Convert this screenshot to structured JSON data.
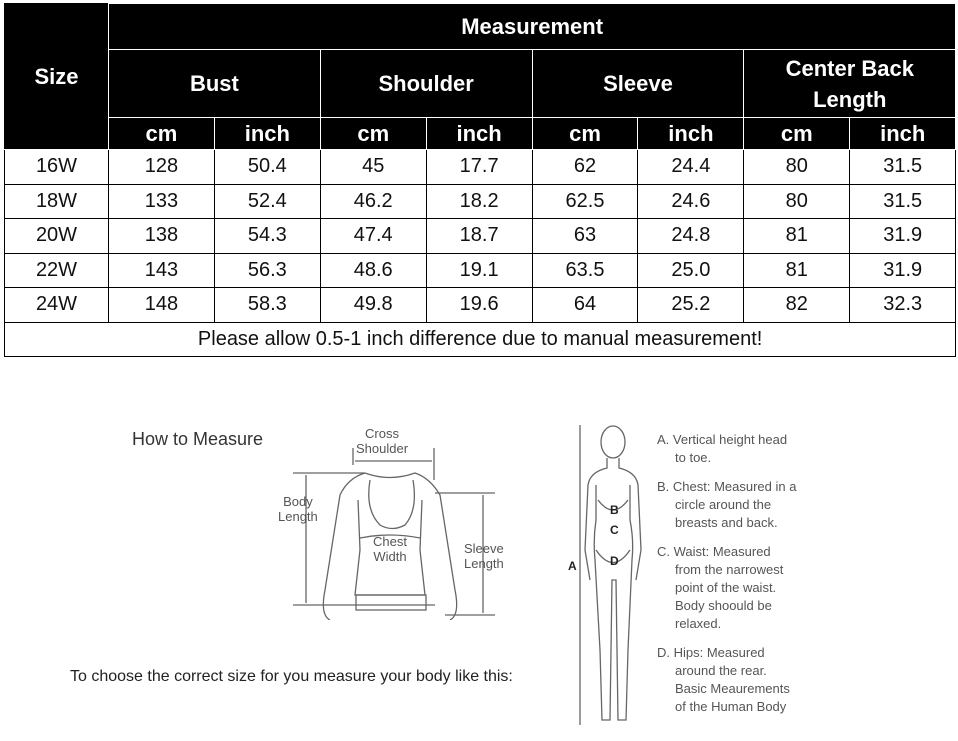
{
  "table": {
    "size_header": "Size",
    "group_header": "Measurement",
    "columns": [
      "Bust",
      "Shoulder",
      "Sleeve",
      "Center Back Length"
    ],
    "units": [
      "cm",
      "inch",
      "cm",
      "inch",
      "cm",
      "inch",
      "cm",
      "inch"
    ],
    "rows": [
      [
        "16W",
        "128",
        "50.4",
        "45",
        "17.7",
        "62",
        "24.4",
        "80",
        "31.5"
      ],
      [
        "18W",
        "133",
        "52.4",
        "46.2",
        "18.2",
        "62.5",
        "24.6",
        "80",
        "31.5"
      ],
      [
        "20W",
        "138",
        "54.3",
        "47.4",
        "18.7",
        "63",
        "24.8",
        "81",
        "31.9"
      ],
      [
        "22W",
        "143",
        "56.3",
        "48.6",
        "19.1",
        "63.5",
        "25.0",
        "81",
        "31.9"
      ],
      [
        "24W",
        "148",
        "58.3",
        "49.8",
        "19.6",
        "64",
        "25.2",
        "82",
        "32.3"
      ]
    ],
    "note": "Please allow 0.5-1 inch difference due to manual measurement!"
  },
  "guide": {
    "title": "How to Measure",
    "cross_shoulder": [
      "Cross",
      "Shoulder"
    ],
    "body_length": [
      "Body",
      "Length"
    ],
    "chest_width": [
      "Chest",
      "Width"
    ],
    "sleeve_length": [
      "Sleeve",
      "Length"
    ],
    "instruction": "To choose the correct size for you measure your body like this:",
    "body_marks": [
      "A",
      "B",
      "C",
      "D"
    ],
    "descriptions": [
      [
        "A. Vertical height head",
        "to toe."
      ],
      [
        "B. Chest: Measured in a",
        "circle around the",
        "breasts and back."
      ],
      [
        "C. Waist: Measured",
        "from the narrowest",
        "point of the waist.",
        "Body shoould be",
        "relaxed."
      ],
      [
        "D. Hips: Measured",
        "around the rear.",
        "Basic Meaurements",
        "of the Human Body"
      ]
    ]
  }
}
